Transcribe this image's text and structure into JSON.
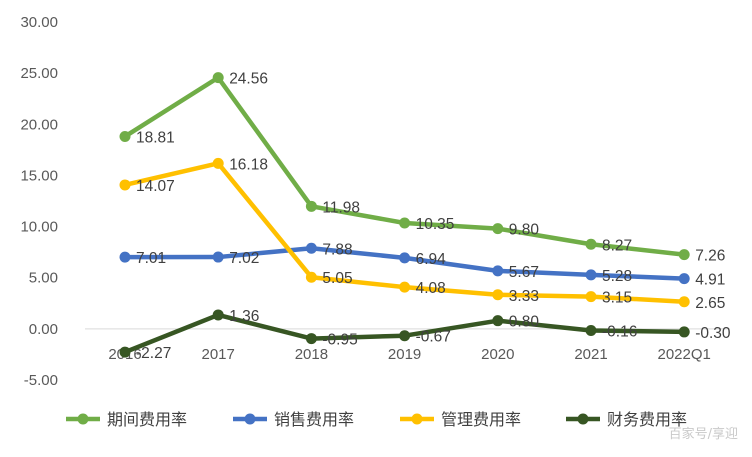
{
  "chart_data": {
    "type": "line",
    "categories": [
      "2016",
      "2017",
      "2018",
      "2019",
      "2020",
      "2021",
      "2022Q1"
    ],
    "ylim": [
      -5,
      30
    ],
    "y_ticks": [
      "30.00",
      "25.00",
      "20.00",
      "15.00",
      "10.00",
      "5.00",
      "0.00",
      "-5.00"
    ],
    "grid": false,
    "legend_position": "bottom",
    "series": [
      {
        "name": "期间费用率",
        "color": "#70ad47",
        "values": [
          18.81,
          24.56,
          11.98,
          10.35,
          9.8,
          8.27,
          7.26
        ],
        "labels": [
          "18.81",
          "24.56",
          "11.98",
          "10.35",
          "9.80",
          "8.27",
          "7.26"
        ]
      },
      {
        "name": "销售费用率",
        "color": "#4472c4",
        "values": [
          7.01,
          7.02,
          7.88,
          6.94,
          5.67,
          5.28,
          4.91
        ],
        "labels": [
          "7.01",
          "7.02",
          "7.88",
          "6.94",
          "5.67",
          "5.28",
          "4.91"
        ]
      },
      {
        "name": "管理费用率",
        "color": "#ffc000",
        "values": [
          14.07,
          16.18,
          5.05,
          4.08,
          3.33,
          3.15,
          2.65
        ],
        "labels": [
          "14.07",
          "16.18",
          "5.05",
          "4.08",
          "3.33",
          "3.15",
          "2.65"
        ]
      },
      {
        "name": "财务费用率",
        "color": "#375623",
        "values": [
          -2.27,
          1.36,
          -0.95,
          -0.67,
          0.8,
          -0.16,
          -0.3
        ],
        "labels": [
          "-2.27",
          "1.36",
          "-0.95",
          "-0.67",
          "0.80",
          "-0.16",
          "-0.30"
        ]
      }
    ]
  },
  "watermark": "百家号/享迎"
}
